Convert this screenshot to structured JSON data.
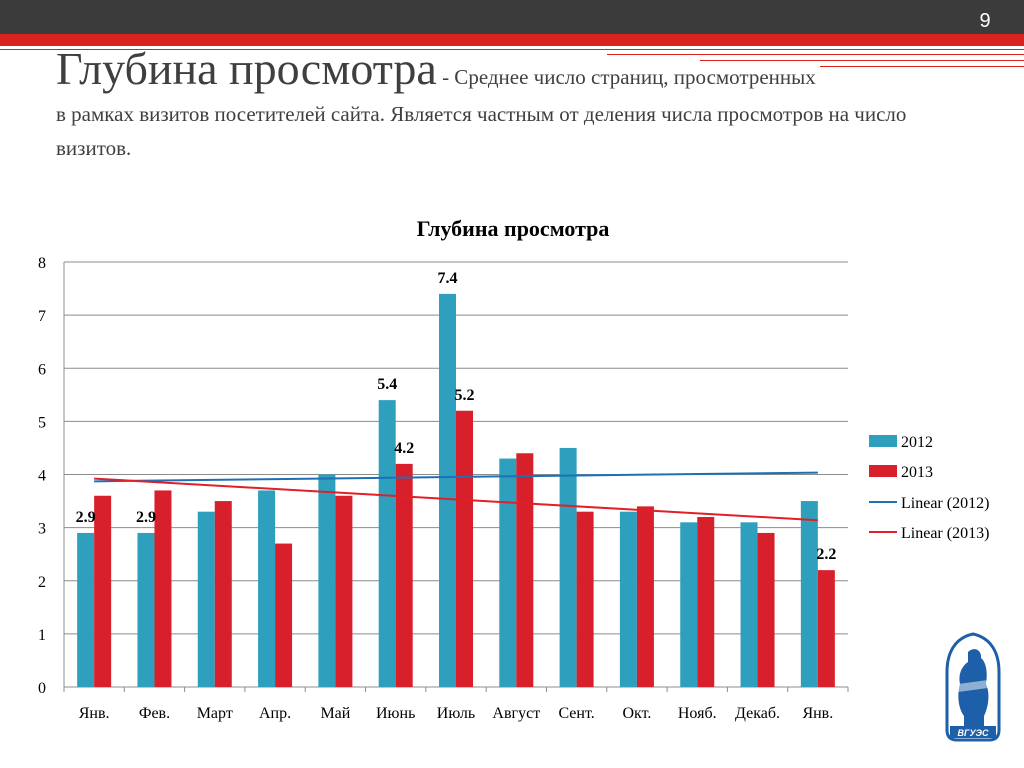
{
  "slide": {
    "number": "9",
    "heading_main": "Глубина просмотра",
    "heading_dash": " - Среднее число страниц, просмотренных",
    "heading_rest": "в рамках визитов посетителей сайта. Является частным от деления числа просмотров на число визитов.",
    "logo_text": "ВГУЭС"
  },
  "colors": {
    "bar_2012": "#2e9fbd",
    "bar_2013": "#d7202b",
    "trend_2012": "#1f6fb5",
    "trend_2013": "#e01f26",
    "header_bg": "#3b3b3b",
    "accent": "#d9231c",
    "logo": "#1d5fa8"
  },
  "chart_data": {
    "type": "bar",
    "title": "Глубина просмотра",
    "xlabel": "",
    "ylabel": "",
    "ylim": [
      0,
      8
    ],
    "yticks": [
      0,
      1,
      2,
      3,
      4,
      5,
      6,
      7,
      8
    ],
    "grid": true,
    "legend_position": "right",
    "categories": [
      "Янв.",
      "Фев.",
      "Март",
      "Апр.",
      "Май",
      "Июнь",
      "Июль",
      "Август",
      "Сент.",
      "Окт.",
      "Нояб.",
      "Декаб.",
      "Янв."
    ],
    "series": [
      {
        "name": "2012",
        "values": [
          2.9,
          2.9,
          3.3,
          3.7,
          4.0,
          5.4,
          7.4,
          4.3,
          4.5,
          3.3,
          3.1,
          3.1,
          3.5
        ],
        "labels": [
          "2.9",
          "2.9",
          null,
          null,
          null,
          "5.4",
          "7.4",
          null,
          null,
          null,
          null,
          null,
          null
        ]
      },
      {
        "name": "2013",
        "values": [
          3.6,
          3.7,
          3.5,
          2.7,
          3.6,
          4.2,
          5.2,
          4.4,
          3.3,
          3.4,
          3.2,
          2.9,
          2.2
        ],
        "labels": [
          null,
          null,
          null,
          null,
          null,
          "4.2",
          "5.2",
          null,
          null,
          null,
          null,
          null,
          "2.2"
        ]
      }
    ],
    "trendlines": [
      {
        "name": "Linear (2012)",
        "series": "2012",
        "type": "linear"
      },
      {
        "name": "Linear (2013)",
        "series": "2013",
        "type": "linear"
      }
    ]
  }
}
